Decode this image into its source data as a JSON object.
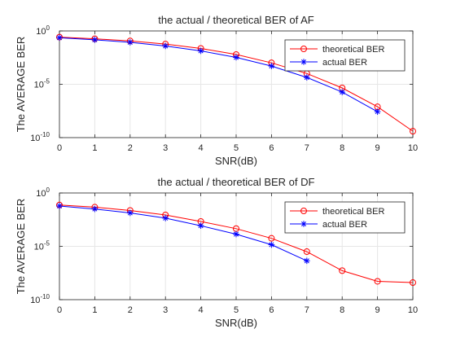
{
  "chart_data": [
    {
      "type": "line",
      "title": "the actual / theoretical BER of AF",
      "xlabel": "SNR(dB)",
      "ylabel": "The AVERAGE BER",
      "xlim": [
        0,
        10
      ],
      "ylim_log10": [
        -10,
        0
      ],
      "yscale": "log",
      "grid": true,
      "legend": "top-right",
      "x_ticks": [
        "0",
        "1",
        "2",
        "3",
        "4",
        "5",
        "6",
        "7",
        "8",
        "9",
        "10"
      ],
      "y_ticks": [
        {
          "base": "10",
          "exp": "0",
          "log": 0
        },
        {
          "base": "10",
          "exp": "-5",
          "log": -5
        },
        {
          "base": "10",
          "exp": "-10",
          "log": -10
        }
      ],
      "series": [
        {
          "name": "theoretical BER",
          "color": "#ff0000",
          "marker": "circle",
          "x": [
            0,
            1,
            2,
            3,
            4,
            5,
            6,
            7,
            8,
            9,
            10
          ],
          "y": [
            0.263,
            0.186,
            0.115,
            0.0589,
            0.0229,
            0.00617,
            0.00102,
            0.000102,
            4.57e-06,
            7.76e-08,
            3.98e-10
          ]
        },
        {
          "name": "actual BER",
          "color": "#0000ff",
          "marker": "asterisk",
          "x": [
            0,
            1,
            2,
            3,
            4,
            5,
            6,
            7,
            8,
            9
          ],
          "y": [
            0.229,
            0.148,
            0.0851,
            0.0389,
            0.0135,
            0.00331,
            0.000513,
            4.37e-05,
            1.86e-06,
            2.69e-08
          ]
        }
      ]
    },
    {
      "type": "line",
      "title": "the actual / theoretical BER of DF",
      "xlabel": "SNR(dB)",
      "ylabel": "The AVERAGE BER",
      "xlim": [
        0,
        10
      ],
      "ylim_log10": [
        -10,
        0
      ],
      "yscale": "log",
      "grid": true,
      "legend": "top-right",
      "x_ticks": [
        "0",
        "1",
        "2",
        "3",
        "4",
        "5",
        "6",
        "7",
        "8",
        "9",
        "10"
      ],
      "y_ticks": [
        {
          "base": "10",
          "exp": "0",
          "log": 0
        },
        {
          "base": "10",
          "exp": "-5",
          "log": -5
        },
        {
          "base": "10",
          "exp": "-10",
          "log": -10
        }
      ],
      "series": [
        {
          "name": "theoretical BER",
          "color": "#ff0000",
          "marker": "circle",
          "x": [
            0,
            1,
            2,
            3,
            4,
            5,
            6,
            7,
            8,
            9,
            10
          ],
          "y": [
            0.0741,
            0.0468,
            0.0229,
            0.00871,
            0.00214,
            0.000457,
            5.62e-05,
            3.16e-06,
            5.25e-08,
            5.25e-09,
            3.98e-09
          ]
        },
        {
          "name": "actual BER",
          "color": "#0000ff",
          "marker": "asterisk",
          "x": [
            0,
            1,
            2,
            3,
            4,
            5,
            6,
            7
          ],
          "y": [
            0.0603,
            0.0316,
            0.0135,
            0.00437,
            0.000851,
            0.000138,
            1.41e-05,
            4.37e-07
          ]
        }
      ]
    }
  ]
}
